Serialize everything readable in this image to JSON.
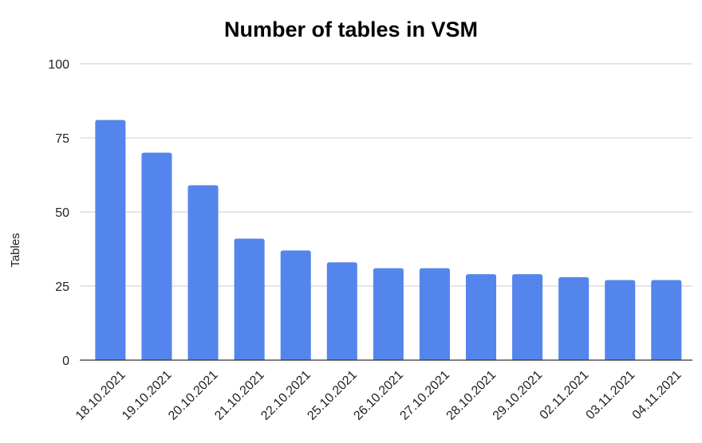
{
  "chart_data": {
    "type": "bar",
    "title": "Number of tables in VSM",
    "xlabel": "",
    "ylabel": "Tables",
    "ylim": [
      0,
      100
    ],
    "yticks": [
      0,
      25,
      50,
      75,
      100
    ],
    "grid": true,
    "legend": "none",
    "bar_color": "#5385EC",
    "categories": [
      "18.10.2021",
      "19.10.2021",
      "20.10.2021",
      "21.10.2021",
      "22.10.2021",
      "25.10.2021",
      "26.10.2021",
      "27.10.2021",
      "28.10.2021",
      "29.10.2021",
      "02.11.2021",
      "03.11.2021",
      "04.11.2021"
    ],
    "values": [
      81,
      70,
      59,
      41,
      37,
      33,
      31,
      31,
      29,
      29,
      28,
      27,
      27
    ]
  }
}
